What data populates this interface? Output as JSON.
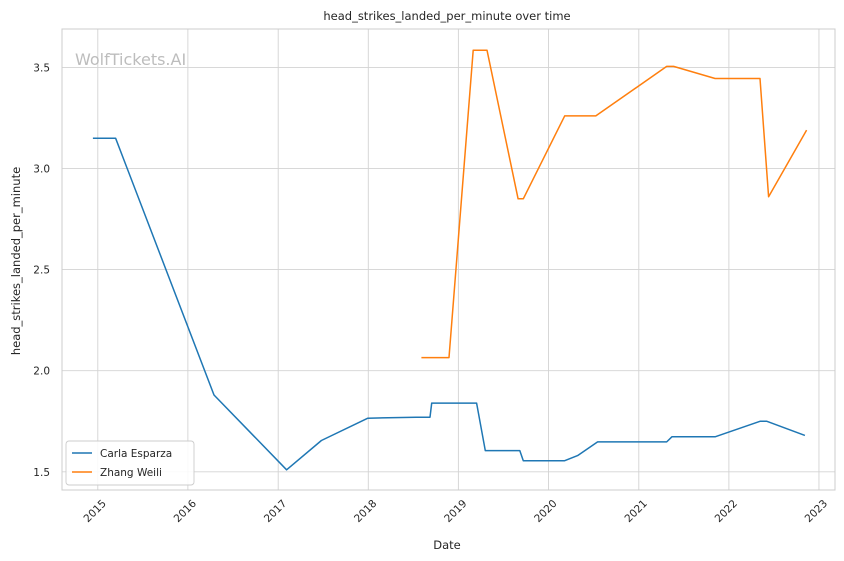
{
  "chart_data": {
    "type": "line",
    "title": "head_strikes_landed_per_minute over time",
    "xlabel": "Date",
    "ylabel": "head_strikes_landed_per_minute",
    "watermark": "WolfTickets.AI",
    "x_ticks": [
      "2015",
      "2016",
      "2017",
      "2018",
      "2019",
      "2020",
      "2021",
      "2022",
      "2023"
    ],
    "y_ticks": [
      "1.5",
      "2.0",
      "2.5",
      "3.0",
      "3.5"
    ],
    "xlim": [
      "2014-08-09",
      "2023-03-07"
    ],
    "ylim": [
      1.41,
      3.69
    ],
    "grid": true,
    "legend_position": "lower left",
    "series": [
      {
        "name": "Carla Esparza",
        "color": "#1f77b4",
        "points": [
          [
            "2014-12-12",
            3.15
          ],
          [
            "2015-03-14",
            3.15
          ],
          [
            "2016-04-16",
            1.88
          ],
          [
            "2017-02-04",
            1.51
          ],
          [
            "2017-06-25",
            1.655
          ],
          [
            "2017-12-30",
            1.765
          ],
          [
            "2018-07-14",
            1.77
          ],
          [
            "2018-09-08",
            1.77
          ],
          [
            "2018-09-15",
            1.84
          ],
          [
            "2019-03-16",
            1.84
          ],
          [
            "2019-04-20",
            1.605
          ],
          [
            "2019-09-07",
            1.605
          ],
          [
            "2019-09-21",
            1.555
          ],
          [
            "2020-03-07",
            1.555
          ],
          [
            "2020-04-28",
            1.58
          ],
          [
            "2020-07-18",
            1.648
          ],
          [
            "2021-04-24",
            1.648
          ],
          [
            "2021-05-15",
            1.673
          ],
          [
            "2021-11-06",
            1.673
          ],
          [
            "2022-05-07",
            1.75
          ],
          [
            "2022-06-04",
            1.75
          ],
          [
            "2022-11-05",
            1.68
          ]
        ]
      },
      {
        "name": "Zhang Weili",
        "color": "#ff7f0e",
        "points": [
          [
            "2018-08-04",
            2.065
          ],
          [
            "2018-11-24",
            2.065
          ],
          [
            "2019-03-02",
            3.585
          ],
          [
            "2019-04-27",
            3.585
          ],
          [
            "2019-08-31",
            2.85
          ],
          [
            "2019-09-21",
            2.85
          ],
          [
            "2020-03-07",
            3.26
          ],
          [
            "2020-07-11",
            3.26
          ],
          [
            "2021-04-24",
            3.505
          ],
          [
            "2021-05-22",
            3.505
          ],
          [
            "2021-11-06",
            3.445
          ],
          [
            "2022-05-07",
            3.445
          ],
          [
            "2022-06-11",
            2.86
          ],
          [
            "2022-11-12",
            3.19
          ]
        ]
      }
    ]
  }
}
